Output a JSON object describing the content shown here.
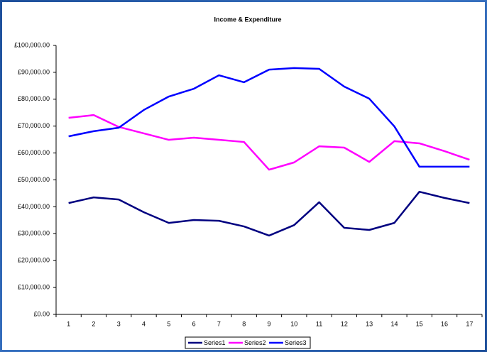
{
  "chart_data": {
    "type": "line",
    "title": "Income & Expenditure",
    "categories": [
      "1",
      "2",
      "3",
      "4",
      "5",
      "6",
      "7",
      "8",
      "9",
      "10",
      "11",
      "12",
      "13",
      "14",
      "15",
      "16",
      "17"
    ],
    "series": [
      {
        "name": "Series1",
        "color": "#000080",
        "values": [
          41400,
          43500,
          42700,
          38000,
          34000,
          35100,
          34800,
          32700,
          29300,
          33200,
          41700,
          32200,
          31400,
          34000,
          45600,
          43300,
          41400
        ]
      },
      {
        "name": "Series2",
        "color": "#ff00ff",
        "values": [
          73100,
          74100,
          69700,
          67300,
          64900,
          65700,
          64900,
          64100,
          53800,
          56500,
          62500,
          62000,
          56700,
          64400,
          63600,
          60700,
          57500
        ]
      },
      {
        "name": "Series3",
        "color": "#0000ff",
        "values": [
          66200,
          68100,
          69400,
          76000,
          81000,
          83900,
          88900,
          86300,
          91000,
          91600,
          91300,
          84700,
          80200,
          69900,
          54900,
          54900,
          54900
        ]
      }
    ],
    "ylim": [
      0,
      100000
    ],
    "yticks": [
      {
        "value": 0,
        "label": "£0.00"
      },
      {
        "value": 10000,
        "label": "£10,000.00"
      },
      {
        "value": 20000,
        "label": "£20,000.00"
      },
      {
        "value": 30000,
        "label": "£30,000.00"
      },
      {
        "value": 40000,
        "label": "£40,000.00"
      },
      {
        "value": 50000,
        "label": "£50,000.00"
      },
      {
        "value": 60000,
        "label": "£60,000.00"
      },
      {
        "value": 70000,
        "label": "£70,000.00"
      },
      {
        "value": 80000,
        "label": "£80,000.00"
      },
      {
        "value": 90000,
        "label": "£90,000.00"
      },
      {
        "value": 100000,
        "label": "£100,000.00"
      }
    ],
    "grid": false,
    "legend": "bottom"
  }
}
